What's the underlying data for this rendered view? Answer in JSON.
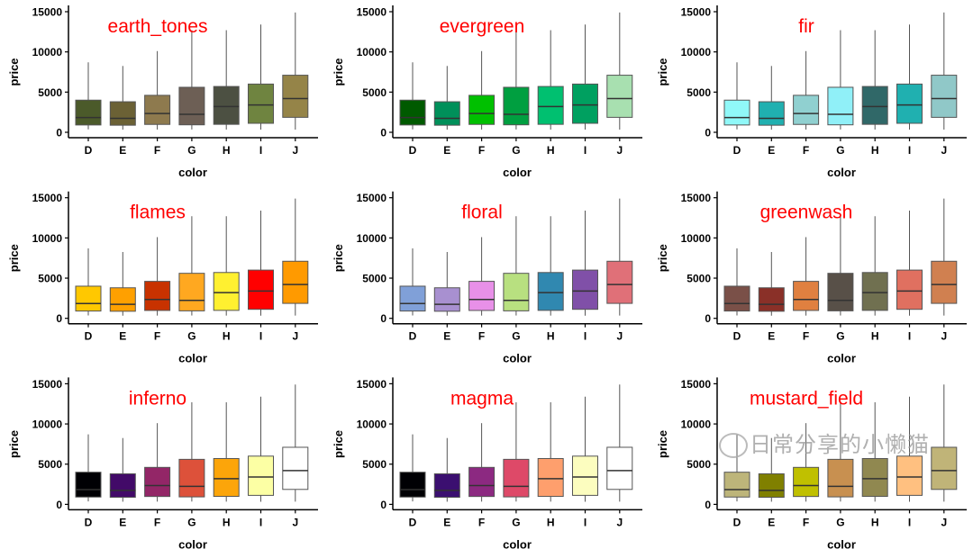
{
  "chart_data": {
    "type": "box",
    "xlabel": "color",
    "ylabel": "price",
    "categories": [
      "D",
      "E",
      "F",
      "G",
      "H",
      "I",
      "J"
    ],
    "ylim": [
      0,
      15000
    ],
    "yticks": [
      0,
      5000,
      10000,
      15000
    ],
    "grid": false,
    "boxes": [
      {
        "category": "D",
        "lower": 360,
        "q1": 910,
        "median": 1840,
        "q3": 4000,
        "upper": 8700
      },
      {
        "category": "E",
        "lower": 330,
        "q1": 880,
        "median": 1740,
        "q3": 3800,
        "upper": 8250
      },
      {
        "category": "F",
        "lower": 340,
        "q1": 980,
        "median": 2340,
        "q3": 4600,
        "upper": 10100
      },
      {
        "category": "G",
        "lower": 350,
        "q1": 930,
        "median": 2240,
        "q3": 5600,
        "upper": 12700
      },
      {
        "category": "H",
        "lower": 340,
        "q1": 990,
        "median": 3200,
        "q3": 5700,
        "upper": 12700
      },
      {
        "category": "I",
        "lower": 330,
        "q1": 1120,
        "median": 3400,
        "q3": 6000,
        "upper": 13400
      },
      {
        "category": "J",
        "lower": 340,
        "q1": 1860,
        "median": 4200,
        "q3": 7100,
        "upper": 14900
      }
    ],
    "panels": [
      {
        "title": "earth_tones",
        "colors": [
          "#4B5A2A",
          "#6B6135",
          "#8E7A4E",
          "#6D5F55",
          "#4C5042",
          "#6F8440",
          "#958448"
        ]
      },
      {
        "title": "evergreen",
        "colors": [
          "#005A00",
          "#00905A",
          "#00C000",
          "#009F40",
          "#00C070",
          "#00A060",
          "#A8E0B0"
        ]
      },
      {
        "title": "fir",
        "colors": [
          "#90F8F8",
          "#20B0B0",
          "#90D0D0",
          "#90F0F8",
          "#306868",
          "#20B0B0",
          "#90C8C8"
        ]
      },
      {
        "title": "flames",
        "colors": [
          "#FFC800",
          "#FFA000",
          "#C83200",
          "#FFA820",
          "#FFF030",
          "#FF0000",
          "#FF9A00"
        ]
      },
      {
        "title": "floral",
        "colors": [
          "#80A0D8",
          "#A890D0",
          "#E890E8",
          "#B8E080",
          "#3088B0",
          "#8050A8",
          "#E07078"
        ]
      },
      {
        "title": "greenwash",
        "colors": [
          "#7A5048",
          "#8A3028",
          "#E08040",
          "#585048",
          "#707050",
          "#E07060",
          "#D08050"
        ]
      },
      {
        "title": "inferno",
        "colors": [
          "#000004",
          "#420A68",
          "#932667",
          "#DD513A",
          "#FCA50A",
          "#FCFFA4",
          "#FFFFFF"
        ]
      },
      {
        "title": "magma",
        "colors": [
          "#000004",
          "#3B0F70",
          "#8C2981",
          "#DE4968",
          "#FE9F6D",
          "#FCFDBF",
          "#FFFFFF"
        ]
      },
      {
        "title": "mustard_field",
        "colors": [
          "#BDB57A",
          "#808000",
          "#C0C000",
          "#C89050",
          "#908850",
          "#FFC080",
          "#C0B478"
        ]
      }
    ],
    "title_color": "#FF0000"
  },
  "watermark": "日常分享的小懒猫"
}
